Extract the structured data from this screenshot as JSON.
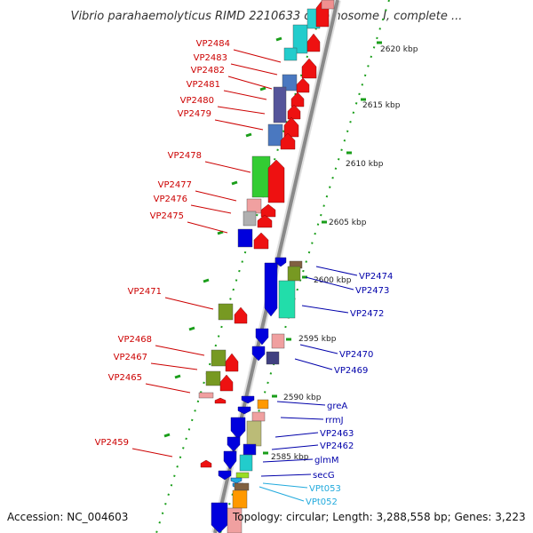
{
  "title": "Vibrio parahaemolyticus RIMD 2210633 chromosome I, complete ...",
  "footer": {
    "accession": "Accession: NC_004603",
    "topology": "Topology: circular; Length: 3,288,558 bp; Genes: 3,223"
  },
  "colors": {
    "left_label": "#cc0000",
    "right_label": "#0000aa",
    "rna_label": "#22aadd",
    "backbone": "#8a8a8a"
  },
  "scale": [
    "2620 kbp",
    "2615 kbp",
    "2610 kbp",
    "2605 kbp",
    "2600 kbp",
    "2595 kbp",
    "2590 kbp",
    "2585 kbp"
  ],
  "left_labels": [
    "VP2484",
    "VP2483",
    "VP2482",
    "VP2481",
    "VP2480",
    "VP2479",
    "VP2478",
    "VP2477",
    "VP2476",
    "VP2475",
    "VP2471",
    "VP2468",
    "VP2467",
    "VP2465",
    "VP2459"
  ],
  "right_labels": [
    "VP2474",
    "VP2473",
    "VP2472",
    "VP2470",
    "VP2469",
    "greA",
    "rrmJ",
    "VP2463",
    "VP2462",
    "glmM",
    "secG"
  ],
  "rna_labels": [
    "VPt053",
    "VPt052"
  ]
}
